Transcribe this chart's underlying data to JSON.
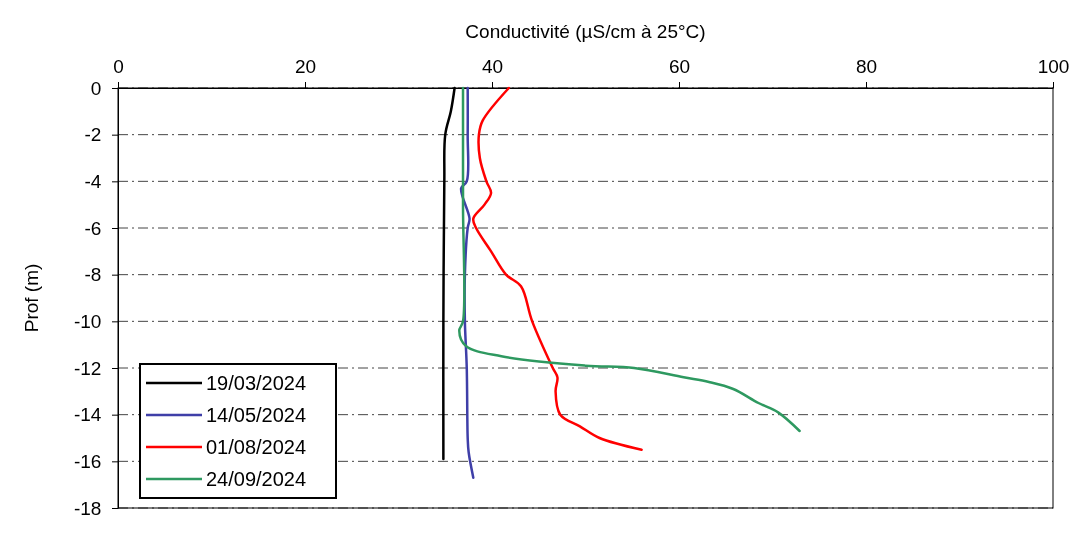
{
  "chart_data": {
    "type": "line",
    "xlabel": "Conductivité (µS/cm à 25°C)",
    "ylabel": "Prof (m)",
    "xlim": [
      0,
      100
    ],
    "xticks": [
      0,
      20,
      40,
      60,
      80,
      100
    ],
    "ylim": [
      -18,
      0
    ],
    "yticks": [
      -18,
      -16,
      -14,
      -12,
      -10,
      -8,
      -6,
      -4,
      -2,
      0
    ],
    "grid": "y",
    "legend": "bottom left",
    "marker": "none",
    "line_style": "solid",
    "series": [
      {
        "name": "19/03/2024",
        "color": "#000000",
        "x": [
          36,
          35.6,
          35,
          34.9,
          34.8,
          34.8
        ],
        "values": [
          0,
          -1,
          -2,
          -4,
          -10,
          -15.9
        ]
      },
      {
        "name": "14/05/2024",
        "color": "#3f3fa8",
        "x": [
          37.4,
          37.4,
          37.3,
          36.7,
          37.6,
          37.4,
          37.1,
          37.1,
          37.3,
          37.4,
          37.5,
          38
        ],
        "values": [
          0,
          -2,
          -4,
          -4.3,
          -5.6,
          -6,
          -8,
          -10,
          -12,
          -15,
          -15.6,
          -16.7
        ]
      },
      {
        "name": "01/08/2024",
        "color": "#ff0000",
        "x": [
          41.8,
          39,
          38.6,
          38.7,
          39.4,
          39.9,
          39.2,
          38,
          38.3,
          39.9,
          41.5,
          43.1,
          44.3,
          46.5,
          47,
          46.8,
          47.3,
          49.4,
          51.5,
          56
        ],
        "values": [
          0,
          -1.4,
          -2,
          -3,
          -4,
          -4.5,
          -5,
          -5.6,
          -6,
          -7,
          -8,
          -8.5,
          -10,
          -12,
          -12.4,
          -13,
          -14,
          -14.5,
          -15,
          -15.5
        ]
      },
      {
        "name": "24/09/2024",
        "color": "#2e9960",
        "x": [
          36.9,
          36.9,
          36.9,
          36.5,
          37.2,
          41,
          50,
          55.2,
          60.5,
          63.2,
          65.8,
          68.5,
          70.6,
          72.9
        ],
        "values": [
          0,
          -5,
          -10,
          -10.4,
          -11.05,
          -11.5,
          -11.9,
          -12,
          -12.4,
          -12.6,
          -12.9,
          -13.5,
          -13.9,
          -14.7
        ]
      }
    ]
  }
}
